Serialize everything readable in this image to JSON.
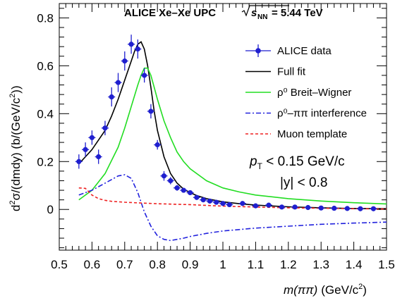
{
  "chart_data": {
    "type": "line",
    "title_main": "ALICE Xe–Xe UPC",
    "title_energy_label": "s",
    "title_energy_sub": "NN",
    "title_energy_value": " = 5.44 TeV",
    "xlabel_main": "m(ππ)",
    "xlabel_unit": "(GeV/c",
    "xlabel_unit_sup": "2",
    "xlabel_unit_end": ")",
    "ylabel_pre": "d",
    "ylabel_sup": "2",
    "ylabel_main": "σ/(dmdy) (b/(GeV/c",
    "ylabel_sup2": "2",
    "ylabel_end": "))",
    "xlim": [
      0.5,
      1.5
    ],
    "ylim": [
      -0.17,
      0.86
    ],
    "xticks": [
      "0.5",
      "0.6",
      "0.7",
      "0.8",
      "0.9",
      "1",
      "1.1",
      "1.2",
      "1.3",
      "1.4",
      "1.5"
    ],
    "yticks": [
      "0",
      "0.2",
      "0.4",
      "0.6",
      "0.8"
    ],
    "annotation_line1_p": "p",
    "annotation_line1_sub": "T",
    "annotation_line1_rest": " < 0.15 GeV/c",
    "annotation_line2": "|y| < 0.8",
    "legend": [
      {
        "label": "ALICE data",
        "color": "#1f1fcf",
        "style": "marker"
      },
      {
        "label": "Full fit",
        "color": "#000000",
        "style": "solid"
      },
      {
        "label": "ρ⁰ Breit–Wigner",
        "color": "#22dd22",
        "style": "solid"
      },
      {
        "label": "ρ⁰–ππ interference",
        "color": "#2222dd",
        "style": "dashdot"
      },
      {
        "label": "Muon template",
        "color": "#ee2222",
        "style": "dashed"
      }
    ],
    "data_points": {
      "x": [
        0.56,
        0.58,
        0.6,
        0.62,
        0.64,
        0.66,
        0.68,
        0.7,
        0.72,
        0.74,
        0.76,
        0.78,
        0.8,
        0.82,
        0.84,
        0.86,
        0.88,
        0.9,
        0.92,
        0.94,
        0.96,
        0.98,
        1.0,
        1.02,
        1.06,
        1.1,
        1.14,
        1.18,
        1.22,
        1.26,
        1.3,
        1.34,
        1.38,
        1.42,
        1.46
      ],
      "y": [
        0.2,
        0.25,
        0.3,
        0.22,
        0.34,
        0.47,
        0.53,
        0.62,
        0.69,
        0.67,
        0.56,
        0.41,
        0.27,
        0.14,
        0.12,
        0.09,
        0.08,
        0.07,
        0.05,
        0.04,
        0.035,
        0.03,
        0.025,
        0.02,
        0.025,
        0.015,
        0.018,
        0.01,
        0.01,
        0.008,
        0.006,
        0.005,
        0.004,
        0.003,
        0.003
      ],
      "yerr": [
        0.03,
        0.03,
        0.03,
        0.03,
        0.03,
        0.04,
        0.04,
        0.04,
        0.04,
        0.04,
        0.03,
        0.03,
        0.02,
        0.02,
        0.015,
        0.012,
        0.01,
        0.01,
        0.01,
        0.008,
        0.008,
        0.007,
        0.007,
        0.006,
        0.006,
        0.005,
        0.005,
        0.004,
        0.004,
        0.004,
        0.003,
        0.003,
        0.003,
        0.003,
        0.003
      ]
    },
    "series": [
      {
        "color": "#000000",
        "x": [
          0.56,
          0.58,
          0.6,
          0.62,
          0.64,
          0.66,
          0.68,
          0.7,
          0.72,
          0.73,
          0.74,
          0.75,
          0.76,
          0.77,
          0.78,
          0.79,
          0.8,
          0.82,
          0.84,
          0.86,
          0.88,
          0.9,
          0.92,
          0.95,
          1.0,
          1.05,
          1.1,
          1.2,
          1.3,
          1.4,
          1.5
        ],
        "y": [
          0.19,
          0.22,
          0.25,
          0.29,
          0.33,
          0.39,
          0.46,
          0.54,
          0.62,
          0.66,
          0.69,
          0.7,
          0.67,
          0.6,
          0.51,
          0.41,
          0.33,
          0.22,
          0.15,
          0.11,
          0.085,
          0.07,
          0.058,
          0.045,
          0.032,
          0.024,
          0.018,
          0.011,
          0.007,
          0.004,
          0.003
        ]
      },
      {
        "color": "#22dd22",
        "x": [
          0.56,
          0.6,
          0.64,
          0.68,
          0.7,
          0.72,
          0.74,
          0.75,
          0.76,
          0.77,
          0.78,
          0.79,
          0.8,
          0.82,
          0.84,
          0.86,
          0.88,
          0.9,
          0.95,
          1.0,
          1.05,
          1.1,
          1.2,
          1.3,
          1.4,
          1.5
        ],
        "y": [
          0.04,
          0.08,
          0.15,
          0.26,
          0.34,
          0.43,
          0.52,
          0.56,
          0.59,
          0.59,
          0.56,
          0.51,
          0.46,
          0.37,
          0.3,
          0.24,
          0.2,
          0.17,
          0.12,
          0.09,
          0.073,
          0.06,
          0.045,
          0.035,
          0.028,
          0.023
        ]
      },
      {
        "color": "#2222dd",
        "x": [
          0.56,
          0.6,
          0.64,
          0.68,
          0.7,
          0.72,
          0.74,
          0.76,
          0.78,
          0.8,
          0.82,
          0.84,
          0.86,
          0.88,
          0.9,
          0.95,
          1.0,
          1.1,
          1.2,
          1.3,
          1.4,
          1.5
        ],
        "y": [
          0.06,
          0.08,
          0.11,
          0.14,
          0.145,
          0.13,
          0.07,
          -0.01,
          -0.07,
          -0.11,
          -0.125,
          -0.13,
          -0.125,
          -0.12,
          -0.113,
          -0.1,
          -0.09,
          -0.078,
          -0.07,
          -0.062,
          -0.057,
          -0.053
        ]
      },
      {
        "color": "#ee2222",
        "x": [
          0.56,
          0.58,
          0.6,
          0.62,
          0.64,
          0.66,
          0.7,
          0.75,
          0.8,
          0.85,
          0.9,
          0.95,
          1.0,
          1.1,
          1.2,
          1.3,
          1.4,
          1.5
        ],
        "y": [
          0.09,
          0.088,
          0.06,
          0.045,
          0.038,
          0.034,
          0.03,
          0.027,
          0.024,
          0.022,
          0.02,
          0.017,
          0.014,
          0.01,
          0.007,
          0.005,
          0.003,
          0.002
        ]
      }
    ]
  }
}
